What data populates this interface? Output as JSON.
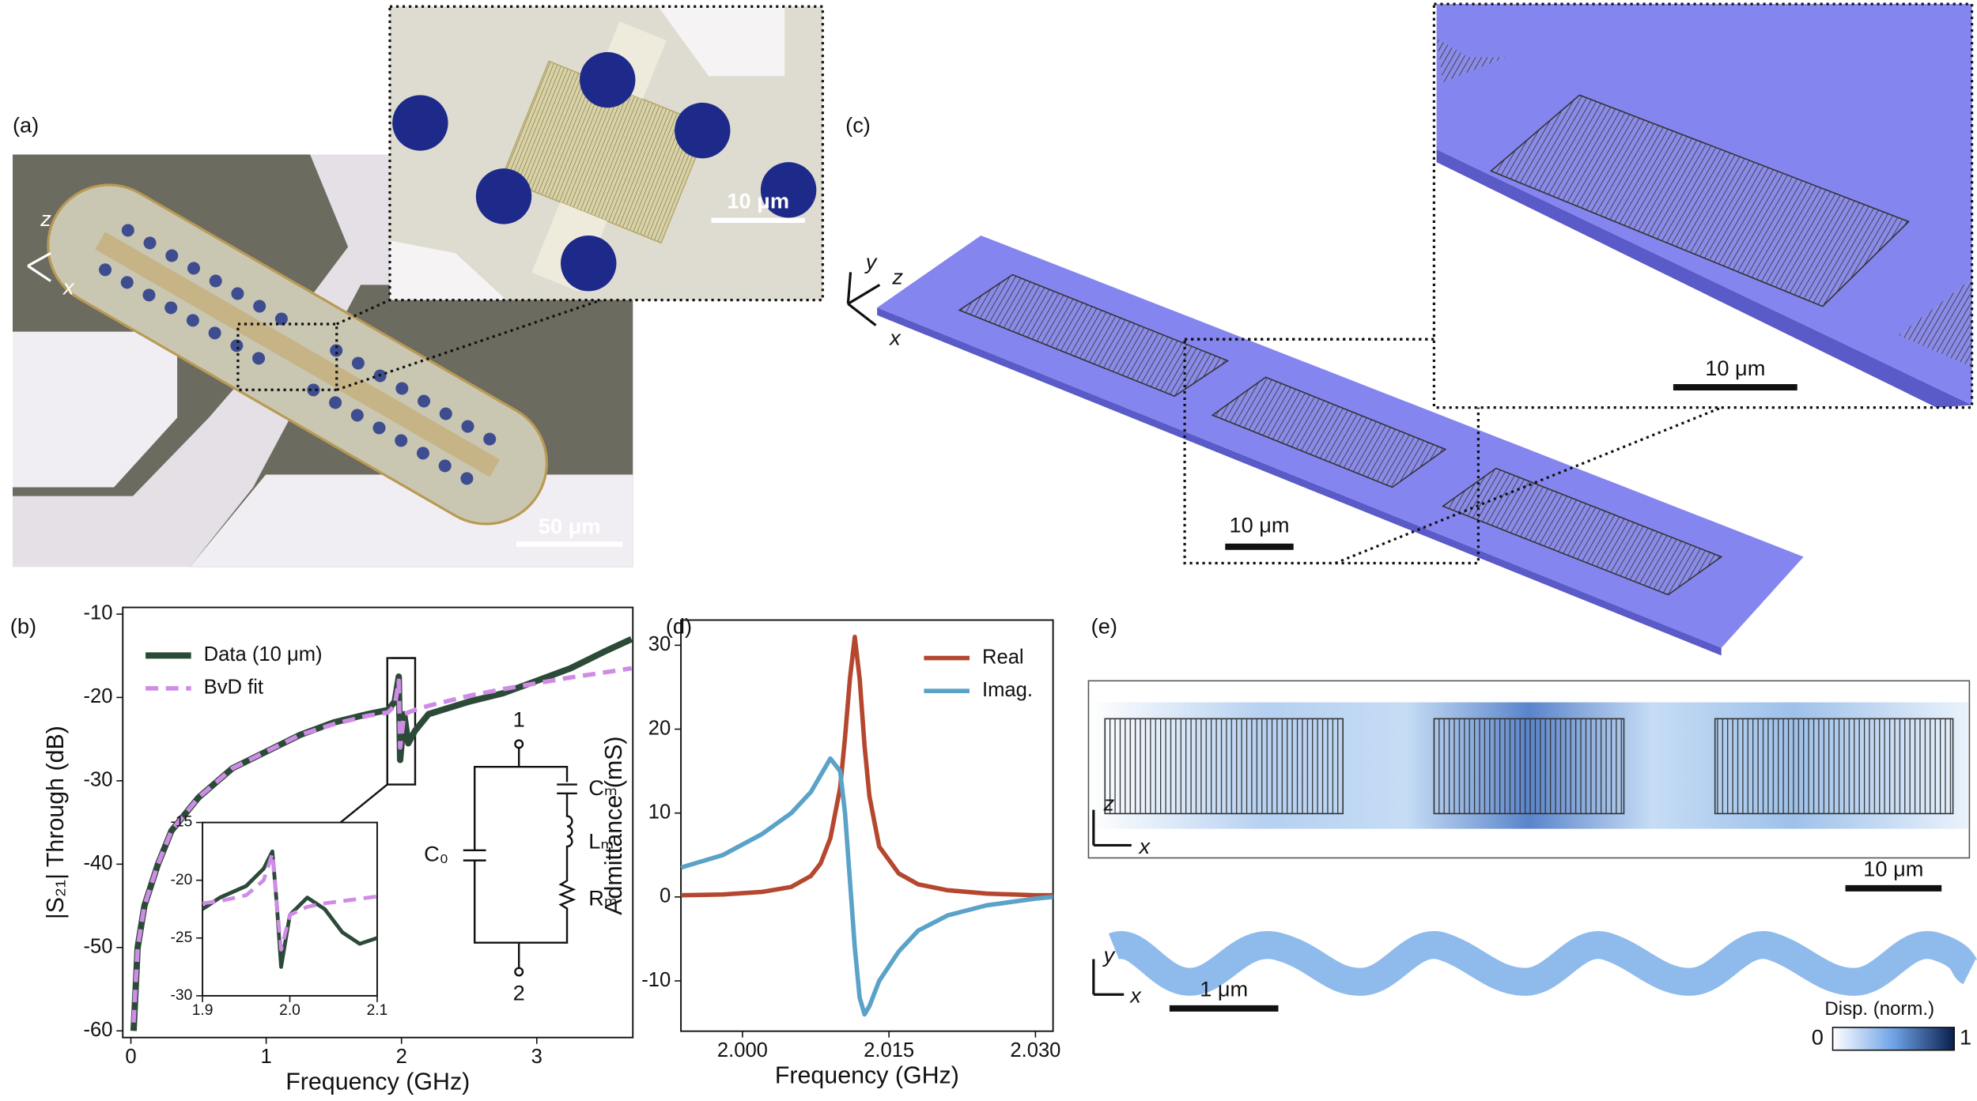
{
  "panels": {
    "a": {
      "label": "(a)",
      "axis_z": "z",
      "axis_x": "x",
      "scale_main": "50 μm",
      "scale_inset": "10 μm"
    },
    "c": {
      "label": "(c)",
      "axis_y": "y",
      "axis_z": "z",
      "axis_x": "x",
      "scale_main": "10 μm",
      "scale_inset": "10 μm"
    },
    "e": {
      "label": "(e)",
      "axis_z": "z",
      "axis_x_top": "x",
      "scale_top": "10 μm",
      "axis_y": "y",
      "axis_x_bottom": "x",
      "scale_bottom": "1 μm",
      "colorbar_title": "Disp. (norm.)",
      "colorbar_min": "0",
      "colorbar_max": "1"
    },
    "b": {
      "label": "(b)"
    },
    "d": {
      "label": "(d)"
    }
  },
  "circuit": {
    "node1": "1",
    "node2": "2",
    "c0": "C₀",
    "cm": "Cₘ",
    "lm": "Lₘ",
    "rm": "Rₘ"
  },
  "chart_data": [
    {
      "type": "line",
      "xlabel": "Frequency (GHz)",
      "ylabel": "|S₂₁| Through (dB)",
      "xlim": [
        -0.06,
        3.71
      ],
      "ylim": [
        -60.8,
        -9.2
      ],
      "xticks": [
        0,
        1,
        2,
        3
      ],
      "yticks": [
        -60,
        -50,
        -40,
        -30,
        -20,
        -10
      ],
      "legend": "upper left",
      "x": [
        0.02,
        0.05,
        0.1,
        0.2,
        0.3,
        0.5,
        0.75,
        1.0,
        1.25,
        1.5,
        1.75,
        1.9,
        1.95,
        1.98,
        1.99,
        2.02,
        2.05,
        2.1,
        2.2,
        2.5,
        2.75,
        3.0,
        3.25,
        3.5,
        3.7
      ],
      "series": [
        {
          "name": "Data (10 μm)",
          "color": "#2c4a38",
          "style": "solid",
          "values": [
            -60,
            -50,
            -45,
            -40,
            -36,
            -32,
            -28.5,
            -26.5,
            -24.5,
            -23,
            -22,
            -21.5,
            -20.5,
            -17.5,
            -27.5,
            -22,
            -25.5,
            -24,
            -22,
            -20.5,
            -19.5,
            -18,
            -16.5,
            -14.5,
            -13
          ]
        },
        {
          "name": "BvD fit",
          "color": "#cf8ce6",
          "style": "dashed",
          "values": [
            -59,
            -50,
            -45,
            -40,
            -36,
            -32,
            -28.5,
            -26.5,
            -24.5,
            -23.2,
            -22.2,
            -21.8,
            -21,
            -18,
            -26,
            -22,
            -21.8,
            -21.5,
            -21,
            -19.8,
            -19,
            -18.3,
            -17.6,
            -17,
            -16.5
          ]
        }
      ]
    },
    {
      "type": "line",
      "xlim": [
        1.9,
        2.1
      ],
      "ylim": [
        -30,
        -15
      ],
      "xticks": [
        1.9,
        {
          "value": 2,
          "label": "2.0"
        },
        2.1
      ],
      "yticks": [
        -30,
        -25,
        -20,
        -15
      ],
      "x": [
        1.9,
        1.92,
        1.95,
        1.97,
        1.98,
        1.985,
        1.99,
        2.0,
        2.02,
        2.04,
        2.06,
        2.08,
        2.1
      ],
      "series": [
        {
          "color": "#2c4a38",
          "style": "solid",
          "values": [
            -22.5,
            -21.5,
            -20.5,
            -19,
            -17.5,
            -22,
            -27.5,
            -23,
            -21.5,
            -22.5,
            -24.5,
            -25.5,
            -25
          ]
        },
        {
          "color": "#cf8ce6",
          "style": "dashed",
          "values": [
            -22,
            -21.8,
            -21.3,
            -20,
            -17.7,
            -22,
            -26,
            -23,
            -22.3,
            -22,
            -21.8,
            -21.6,
            -21.4
          ]
        }
      ]
    },
    {
      "type": "line",
      "xlabel": "Frequency (GHz)",
      "ylabel": "Admittance (mS)",
      "xlim": [
        1.9937,
        2.0318
      ],
      "ylim": [
        -16,
        33
      ],
      "xticks": [
        {
          "value": 2.0,
          "label": "2.000"
        },
        {
          "value": 2.015,
          "label": "2.015"
        },
        {
          "value": 2.03,
          "label": "2.030"
        }
      ],
      "yticks": [
        -10,
        0,
        10,
        20,
        30
      ],
      "legend": "upper right",
      "x": [
        1.9937,
        1.998,
        2.002,
        2.005,
        2.007,
        2.008,
        2.009,
        2.01,
        2.0105,
        2.011,
        2.0115,
        2.012,
        2.0125,
        2.013,
        2.014,
        2.016,
        2.018,
        2.021,
        2.025,
        2.03,
        2.0318
      ],
      "series": [
        {
          "name": "Real",
          "color": "#b5472e",
          "style": "solid",
          "values": [
            0.2,
            0.3,
            0.6,
            1.2,
            2.5,
            4,
            7,
            13,
            19,
            26,
            31,
            26,
            18,
            12,
            6,
            2.8,
            1.5,
            0.8,
            0.4,
            0.2,
            0.2
          ]
        },
        {
          "name": "Imag.",
          "color": "#5aa2c8",
          "style": "solid",
          "values": [
            3.5,
            5,
            7.5,
            10,
            12.5,
            14.5,
            16.5,
            15,
            10,
            2,
            -6,
            -12,
            -14,
            -13,
            -10,
            -6.5,
            -4,
            -2.2,
            -1,
            -0.2,
            0
          ]
        }
      ]
    }
  ]
}
